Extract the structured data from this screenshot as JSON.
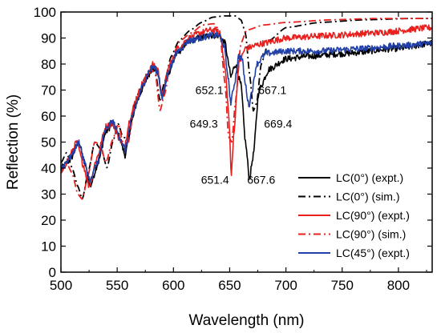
{
  "chart_data": {
    "type": "line",
    "xlabel": "Wavelength (nm)",
    "ylabel": "Reflection (%)",
    "xlim": [
      500,
      830
    ],
    "ylim": [
      0,
      100
    ],
    "xticks": [
      500,
      550,
      600,
      650,
      700,
      750,
      800
    ],
    "yticks": [
      0,
      10,
      20,
      30,
      40,
      50,
      60,
      70,
      80,
      90,
      100
    ],
    "grid": false,
    "legend_position": "bottom-right",
    "series": [
      {
        "name": "LC(0°) (expt.)",
        "color": "#000000",
        "style": "solid",
        "noisy": true,
        "points": [
          [
            500,
            40
          ],
          [
            508,
            43
          ],
          [
            516,
            50
          ],
          [
            521,
            42
          ],
          [
            526,
            33
          ],
          [
            533,
            42
          ],
          [
            540,
            54
          ],
          [
            546,
            57
          ],
          [
            552,
            52
          ],
          [
            557,
            45
          ],
          [
            563,
            58
          ],
          [
            568,
            66
          ],
          [
            573,
            71
          ],
          [
            578,
            76
          ],
          [
            582,
            79
          ],
          [
            586,
            77
          ],
          [
            590,
            67
          ],
          [
            596,
            77
          ],
          [
            603,
            84
          ],
          [
            612,
            88
          ],
          [
            622,
            90
          ],
          [
            632,
            91
          ],
          [
            640,
            91
          ],
          [
            646,
            88
          ],
          [
            649,
            80
          ],
          [
            651,
            75
          ],
          [
            655,
            80
          ],
          [
            660,
            72
          ],
          [
            664,
            50
          ],
          [
            667.6,
            36
          ],
          [
            671,
            45
          ],
          [
            676,
            70
          ],
          [
            685,
            78
          ],
          [
            700,
            82
          ],
          [
            720,
            83
          ],
          [
            750,
            84
          ],
          [
            800,
            86
          ],
          [
            830,
            88
          ]
        ]
      },
      {
        "name": "LC(0°) (sim.)",
        "color": "#000000",
        "style": "dashdot",
        "noisy": false,
        "points": [
          [
            500,
            42
          ],
          [
            505,
            46
          ],
          [
            510,
            40
          ],
          [
            515,
            33
          ],
          [
            519,
            28
          ],
          [
            524,
            38
          ],
          [
            530,
            50
          ],
          [
            536,
            47
          ],
          [
            541,
            40
          ],
          [
            546,
            50
          ],
          [
            551,
            57
          ],
          [
            555,
            52
          ],
          [
            560,
            51
          ],
          [
            565,
            64
          ],
          [
            570,
            70
          ],
          [
            575,
            75
          ],
          [
            580,
            79
          ],
          [
            584,
            77
          ],
          [
            588,
            66
          ],
          [
            592,
            73
          ],
          [
            598,
            83
          ],
          [
            605,
            89
          ],
          [
            615,
            93
          ],
          [
            625,
            96
          ],
          [
            635,
            98
          ],
          [
            645,
            98.5
          ],
          [
            655,
            98.5
          ],
          [
            660,
            97
          ],
          [
            664,
            92
          ],
          [
            668,
            75
          ],
          [
            671,
            62
          ],
          [
            674,
            65
          ],
          [
            678,
            80
          ],
          [
            685,
            89
          ],
          [
            700,
            94
          ],
          [
            730,
            96
          ],
          [
            770,
            97
          ],
          [
            810,
            97.5
          ],
          [
            830,
            97.5
          ]
        ]
      },
      {
        "name": "LC(90°) (expt.)",
        "color": "#e8201e",
        "style": "solid",
        "noisy": true,
        "points": [
          [
            500,
            38
          ],
          [
            506,
            43
          ],
          [
            514,
            50
          ],
          [
            520,
            41
          ],
          [
            525,
            33
          ],
          [
            532,
            44
          ],
          [
            540,
            56
          ],
          [
            546,
            57
          ],
          [
            551,
            52
          ],
          [
            556,
            48
          ],
          [
            562,
            60
          ],
          [
            567,
            67
          ],
          [
            573,
            73
          ],
          [
            578,
            77
          ],
          [
            582,
            80
          ],
          [
            586,
            78
          ],
          [
            590,
            68
          ],
          [
            596,
            79
          ],
          [
            604,
            86
          ],
          [
            614,
            90
          ],
          [
            624,
            92
          ],
          [
            632,
            93
          ],
          [
            638,
            93
          ],
          [
            642,
            91
          ],
          [
            646,
            78
          ],
          [
            649.3,
            60
          ],
          [
            651.4,
            37
          ],
          [
            654,
            55
          ],
          [
            658,
            80
          ],
          [
            664,
            86
          ],
          [
            680,
            88
          ],
          [
            700,
            90
          ],
          [
            740,
            91
          ],
          [
            780,
            92
          ],
          [
            830,
            94
          ]
        ]
      },
      {
        "name": "LC(90°) (sim.)",
        "color": "#e8201e",
        "style": "dashdot",
        "noisy": false,
        "points": [
          [
            500,
            38
          ],
          [
            505,
            42
          ],
          [
            510,
            38
          ],
          [
            515,
            30
          ],
          [
            519,
            28
          ],
          [
            524,
            37
          ],
          [
            530,
            50
          ],
          [
            535,
            49
          ],
          [
            540,
            42
          ],
          [
            546,
            51
          ],
          [
            551,
            57
          ],
          [
            555,
            50
          ],
          [
            560,
            50
          ],
          [
            565,
            63
          ],
          [
            570,
            69
          ],
          [
            575,
            74
          ],
          [
            580,
            78
          ],
          [
            584,
            76
          ],
          [
            588,
            62
          ],
          [
            592,
            68
          ],
          [
            598,
            82
          ],
          [
            606,
            89
          ],
          [
            616,
            92
          ],
          [
            626,
            95
          ],
          [
            636,
            95.5
          ],
          [
            641,
            93
          ],
          [
            646,
            72
          ],
          [
            649,
            52
          ],
          [
            652,
            50
          ],
          [
            655,
            65
          ],
          [
            660,
            88
          ],
          [
            665,
            93
          ],
          [
            680,
            95
          ],
          [
            700,
            96
          ],
          [
            740,
            97
          ],
          [
            780,
            97.5
          ],
          [
            830,
            97.5
          ]
        ]
      },
      {
        "name": "LC(45°) (expt.)",
        "color": "#2140a8",
        "style": "solid",
        "noisy": true,
        "points": [
          [
            500,
            40
          ],
          [
            508,
            44
          ],
          [
            516,
            50
          ],
          [
            521,
            42
          ],
          [
            526,
            35
          ],
          [
            533,
            43
          ],
          [
            540,
            55
          ],
          [
            546,
            58
          ],
          [
            552,
            52
          ],
          [
            557,
            47
          ],
          [
            563,
            59
          ],
          [
            568,
            66
          ],
          [
            573,
            72
          ],
          [
            578,
            77
          ],
          [
            582,
            79
          ],
          [
            586,
            77
          ],
          [
            590,
            67
          ],
          [
            596,
            78
          ],
          [
            604,
            85
          ],
          [
            614,
            89
          ],
          [
            624,
            90
          ],
          [
            634,
            91
          ],
          [
            641,
            91
          ],
          [
            645,
            87
          ],
          [
            648,
            77
          ],
          [
            651,
            65
          ],
          [
            654,
            72
          ],
          [
            658,
            83
          ],
          [
            661,
            82
          ],
          [
            664,
            72
          ],
          [
            667,
            64
          ],
          [
            670,
            70
          ],
          [
            674,
            80
          ],
          [
            682,
            84
          ],
          [
            700,
            85
          ],
          [
            730,
            85
          ],
          [
            770,
            86
          ],
          [
            800,
            87
          ],
          [
            830,
            88
          ]
        ]
      }
    ],
    "annotations": [
      {
        "text": "652.1",
        "x": 632,
        "y": 68.5
      },
      {
        "text": "667.1",
        "x": 688,
        "y": 68.5
      },
      {
        "text": "649.3",
        "x": 627,
        "y": 55.5
      },
      {
        "text": "669.4",
        "x": 693,
        "y": 55.5
      },
      {
        "text": "651.4",
        "x": 637,
        "y": 34
      },
      {
        "text": "667.6",
        "x": 678,
        "y": 34
      }
    ]
  }
}
